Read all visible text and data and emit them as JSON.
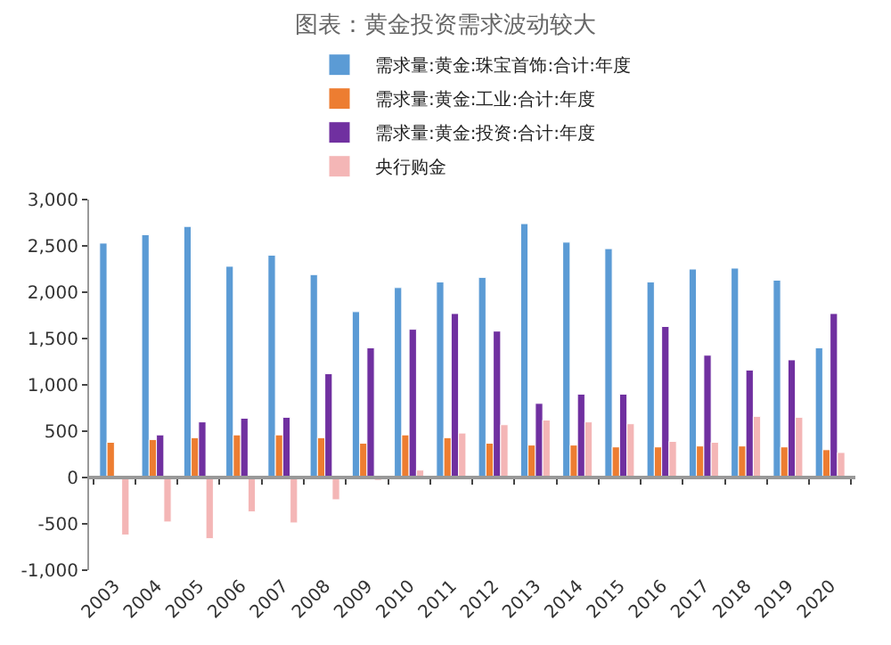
{
  "chart_data": {
    "type": "bar",
    "title": "图表：黄金投资需求波动较大",
    "categories": [
      "2003",
      "2004",
      "2005",
      "2006",
      "2007",
      "2008",
      "2009",
      "2010",
      "2011",
      "2012",
      "2013",
      "2014",
      "2015",
      "2016",
      "2017",
      "2018",
      "2019",
      "2020"
    ],
    "series": [
      {
        "name": "需求量:黄金:珠宝首饰:合计:年度",
        "color": "#5b9bd5",
        "values": [
          2530,
          2620,
          2710,
          2280,
          2400,
          2190,
          1790,
          2050,
          2110,
          2160,
          2740,
          2540,
          2470,
          2110,
          2250,
          2260,
          2130,
          1400
        ]
      },
      {
        "name": "需求量:黄金:工业:合计:年度",
        "color": "#ed7d31",
        "values": [
          380,
          410,
          430,
          460,
          460,
          430,
          370,
          460,
          430,
          370,
          350,
          350,
          330,
          330,
          340,
          340,
          330,
          300
        ]
      },
      {
        "name": "需求量:黄金:投资:合计:年度",
        "color": "#7030a0",
        "values": [
          null,
          460,
          600,
          640,
          650,
          1120,
          1400,
          1600,
          1770,
          1580,
          800,
          900,
          900,
          1630,
          1320,
          1160,
          1270,
          1770
        ]
      },
      {
        "name": "央行购金",
        "color": "#f4b6b6",
        "values": [
          -620,
          -480,
          -660,
          -370,
          -490,
          -240,
          -30,
          80,
          480,
          570,
          620,
          600,
          580,
          390,
          380,
          660,
          650,
          270
        ]
      }
    ],
    "ylim": [
      -1000,
      3000
    ],
    "yticks": [
      {
        "value": -1000,
        "label": "-1,000"
      },
      -500,
      0,
      500,
      {
        "value": 1000,
        "label": "1,000"
      },
      {
        "value": 1500,
        "label": "1,500"
      },
      {
        "value": 2000,
        "label": "2,000"
      },
      {
        "value": 2500,
        "label": "2,500"
      },
      {
        "value": 3000,
        "label": "3,000"
      }
    ],
    "legend": "top"
  }
}
